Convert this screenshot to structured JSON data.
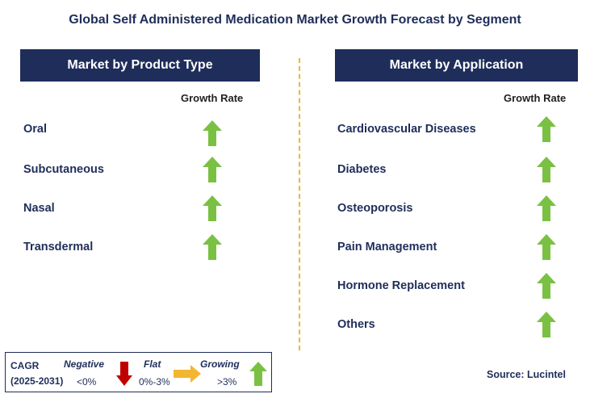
{
  "title": "Global Self Administered Medication Market Growth Forecast by Segment",
  "left_panel": {
    "header": "Market by Product Type",
    "growth_label": "Growth Rate",
    "items": [
      {
        "label": "Oral",
        "trend": "growing"
      },
      {
        "label": "Subcutaneous",
        "trend": "growing"
      },
      {
        "label": "Nasal",
        "trend": "growing"
      },
      {
        "label": "Transdermal",
        "trend": "growing"
      }
    ]
  },
  "right_panel": {
    "header": "Market by Application",
    "growth_label": "Growth Rate",
    "items": [
      {
        "label": "Cardiovascular Diseases",
        "trend": "growing"
      },
      {
        "label": "Diabetes",
        "trend": "growing"
      },
      {
        "label": "Osteoporosis",
        "trend": "growing"
      },
      {
        "label": "Pain Management",
        "trend": "growing"
      },
      {
        "label": "Hormone Replacement",
        "trend": "growing"
      },
      {
        "label": "Others",
        "trend": "growing"
      }
    ]
  },
  "legend": {
    "cagr_label": "CAGR",
    "period": "(2025-2031)",
    "negative_label": "Negative",
    "negative_range": "<0%",
    "flat_label": "Flat",
    "flat_range": "0%-3%",
    "growing_label": "Growing",
    "growing_range": ">3%"
  },
  "source": "Source: Lucintel",
  "colors": {
    "navy": "#1f2d5a",
    "growing": "#7ac143",
    "negative": "#c00000",
    "flat": "#f2b632",
    "divider": "#f2b632"
  }
}
